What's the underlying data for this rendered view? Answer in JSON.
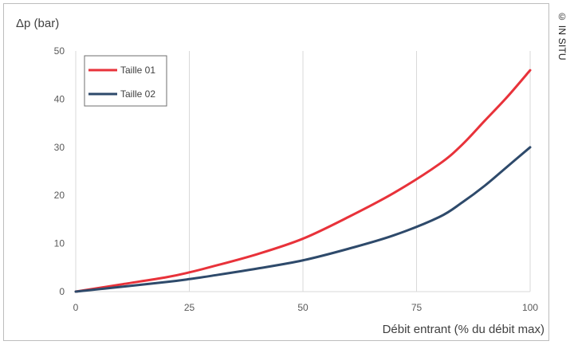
{
  "copyright": "© IN SITU",
  "chart_data": {
    "type": "line",
    "ylabel": "Δp (bar)",
    "xlabel": "Débit entrant (% du débit max)",
    "xlim": [
      0,
      100
    ],
    "ylim": [
      0,
      50
    ],
    "x_ticks": [
      "0",
      "25",
      "50",
      "75",
      "100"
    ],
    "y_ticks": [
      "0",
      "10",
      "20",
      "30",
      "40",
      "50"
    ],
    "grid": "vertical",
    "legend_position": "top-left",
    "series": [
      {
        "name": "Taille 01",
        "color": "#e8323a",
        "points": [
          [
            0,
            0
          ],
          [
            10,
            1.5
          ],
          [
            20,
            3
          ],
          [
            25,
            4
          ],
          [
            30,
            5.2
          ],
          [
            40,
            7.8
          ],
          [
            50,
            11
          ],
          [
            60,
            15.5
          ],
          [
            70,
            20.5
          ],
          [
            80,
            26.5
          ],
          [
            85,
            30.5
          ],
          [
            90,
            35.5
          ],
          [
            95,
            40.5
          ],
          [
            100,
            46
          ]
        ]
      },
      {
        "name": "Taille 02",
        "color": "#2e4a6b",
        "points": [
          [
            0,
            0
          ],
          [
            10,
            1
          ],
          [
            20,
            2
          ],
          [
            25,
            2.6
          ],
          [
            30,
            3.3
          ],
          [
            40,
            4.8
          ],
          [
            50,
            6.5
          ],
          [
            60,
            8.9
          ],
          [
            70,
            11.7
          ],
          [
            80,
            15.5
          ],
          [
            85,
            18.5
          ],
          [
            90,
            22
          ],
          [
            95,
            26
          ],
          [
            100,
            30
          ]
        ]
      }
    ]
  }
}
